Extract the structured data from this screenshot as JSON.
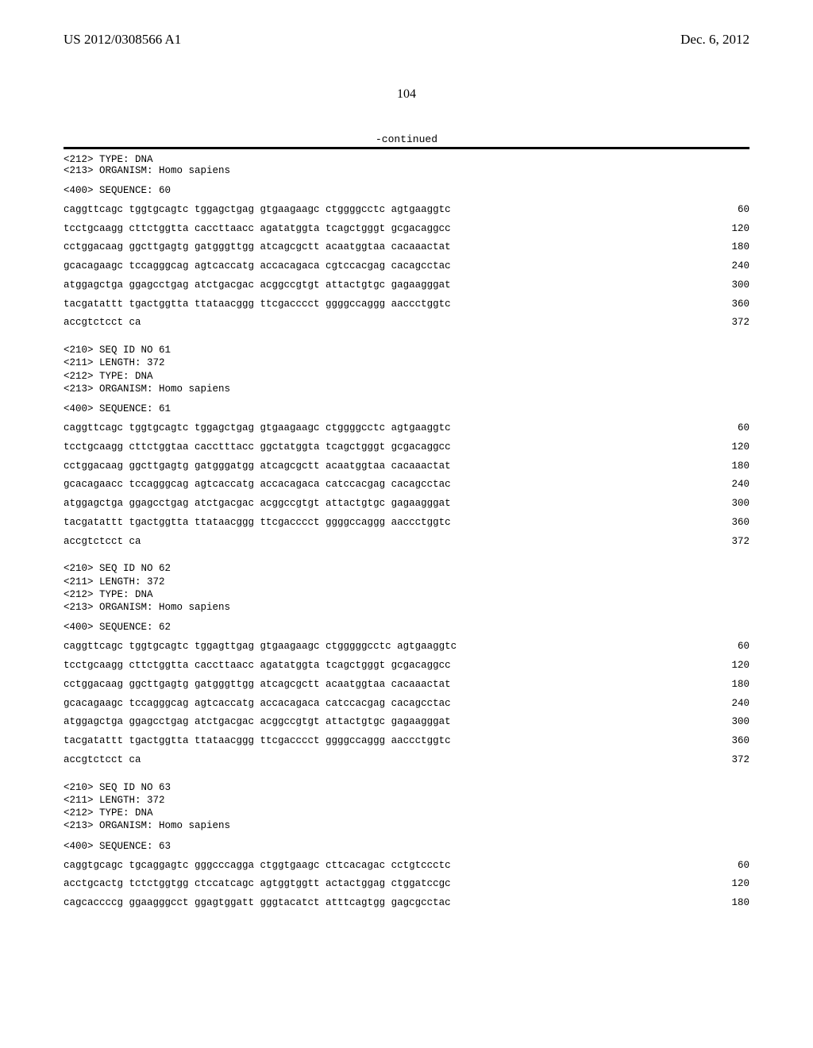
{
  "header": {
    "pub_number": "US 2012/0308566 A1",
    "pub_date": "Dec. 6, 2012"
  },
  "page_number": "104",
  "continued_label": "-continued",
  "entry_head": {
    "type_line": "<212> TYPE: DNA",
    "organism_line": "<213> ORGANISM: Homo sapiens"
  },
  "seq60_label": "<400> SEQUENCE: 60",
  "seq60": [
    {
      "t": "caggttcagc tggtgcagtc tggagctgag gtgaagaagc ctggggcctc agtgaaggtc",
      "p": "60"
    },
    {
      "t": "tcctgcaagg cttctggtta caccttaacc agatatggta tcagctgggt gcgacaggcc",
      "p": "120"
    },
    {
      "t": "cctggacaag ggcttgagtg gatgggttgg atcagcgctt acaatggtaa cacaaactat",
      "p": "180"
    },
    {
      "t": "gcacagaagc tccagggcag agtcaccatg accacagaca cgtccacgag cacagcctac",
      "p": "240"
    },
    {
      "t": "atggagctga ggagcctgag atctgacgac acggccgtgt attactgtgc gagaagggat",
      "p": "300"
    },
    {
      "t": "tacgatattt tgactggtta ttataacggg ttcgacccct ggggccaggg aaccctggtc",
      "p": "360"
    },
    {
      "t": "accgtctcct ca",
      "p": "372"
    }
  ],
  "meta61": "<210> SEQ ID NO 61\n<211> LENGTH: 372\n<212> TYPE: DNA\n<213> ORGANISM: Homo sapiens",
  "seq61_label": "<400> SEQUENCE: 61",
  "seq61": [
    {
      "t": "caggttcagc tggtgcagtc tggagctgag gtgaagaagc ctggggcctc agtgaaggtc",
      "p": "60"
    },
    {
      "t": "tcctgcaagg cttctggtaa cacctttacc ggctatggta tcagctgggt gcgacaggcc",
      "p": "120"
    },
    {
      "t": "cctggacaag ggcttgagtg gatgggatgg atcagcgctt acaatggtaa cacaaactat",
      "p": "180"
    },
    {
      "t": "gcacagaacc tccagggcag agtcaccatg accacagaca catccacgag cacagcctac",
      "p": "240"
    },
    {
      "t": "atggagctga ggagcctgag atctgacgac acggccgtgt attactgtgc gagaagggat",
      "p": "300"
    },
    {
      "t": "tacgatattt tgactggtta ttataacggg ttcgacccct ggggccaggg aaccctggtc",
      "p": "360"
    },
    {
      "t": "accgtctcct ca",
      "p": "372"
    }
  ],
  "meta62": "<210> SEQ ID NO 62\n<211> LENGTH: 372\n<212> TYPE: DNA\n<213> ORGANISM: Homo sapiens",
  "seq62_label": "<400> SEQUENCE: 62",
  "seq62": [
    {
      "t": "caggttcagc tggtgcagtc tggagttgag gtgaagaagc ctgggggcctc agtgaaggtc",
      "p": "60"
    },
    {
      "t": "tcctgcaagg cttctggtta caccttaacc agatatggta tcagctgggt gcgacaggcc",
      "p": "120"
    },
    {
      "t": "cctggacaag ggcttgagtg gatgggttgg atcagcgctt acaatggtaa cacaaactat",
      "p": "180"
    },
    {
      "t": "gcacagaagc tccagggcag agtcaccatg accacagaca catccacgag cacagcctac",
      "p": "240"
    },
    {
      "t": "atggagctga ggagcctgag atctgacgac acggccgtgt attactgtgc gagaagggat",
      "p": "300"
    },
    {
      "t": "tacgatattt tgactggtta ttataacggg ttcgacccct ggggccaggg aaccctggtc",
      "p": "360"
    },
    {
      "t": "accgtctcct ca",
      "p": "372"
    }
  ],
  "meta63": "<210> SEQ ID NO 63\n<211> LENGTH: 372\n<212> TYPE: DNA\n<213> ORGANISM: Homo sapiens",
  "seq63_label": "<400> SEQUENCE: 63",
  "seq63": [
    {
      "t": "caggtgcagc tgcaggagtc gggcccagga ctggtgaagc cttcacagac cctgtccctc",
      "p": "60"
    },
    {
      "t": "acctgcactg tctctggtgg ctccatcagc agtggtggtt actactggag ctggatccgc",
      "p": "120"
    },
    {
      "t": "cagcaccccg ggaagggcct ggagtggatt gggtacatct atttcagtgg gagcgcctac",
      "p": "180"
    }
  ],
  "colors": {
    "text": "#000000",
    "background": "#ffffff",
    "rule": "#000000"
  },
  "fonts": {
    "header_family": "Times New Roman",
    "body_family": "Courier New",
    "header_size_pt": 12,
    "body_size_pt": 9
  }
}
